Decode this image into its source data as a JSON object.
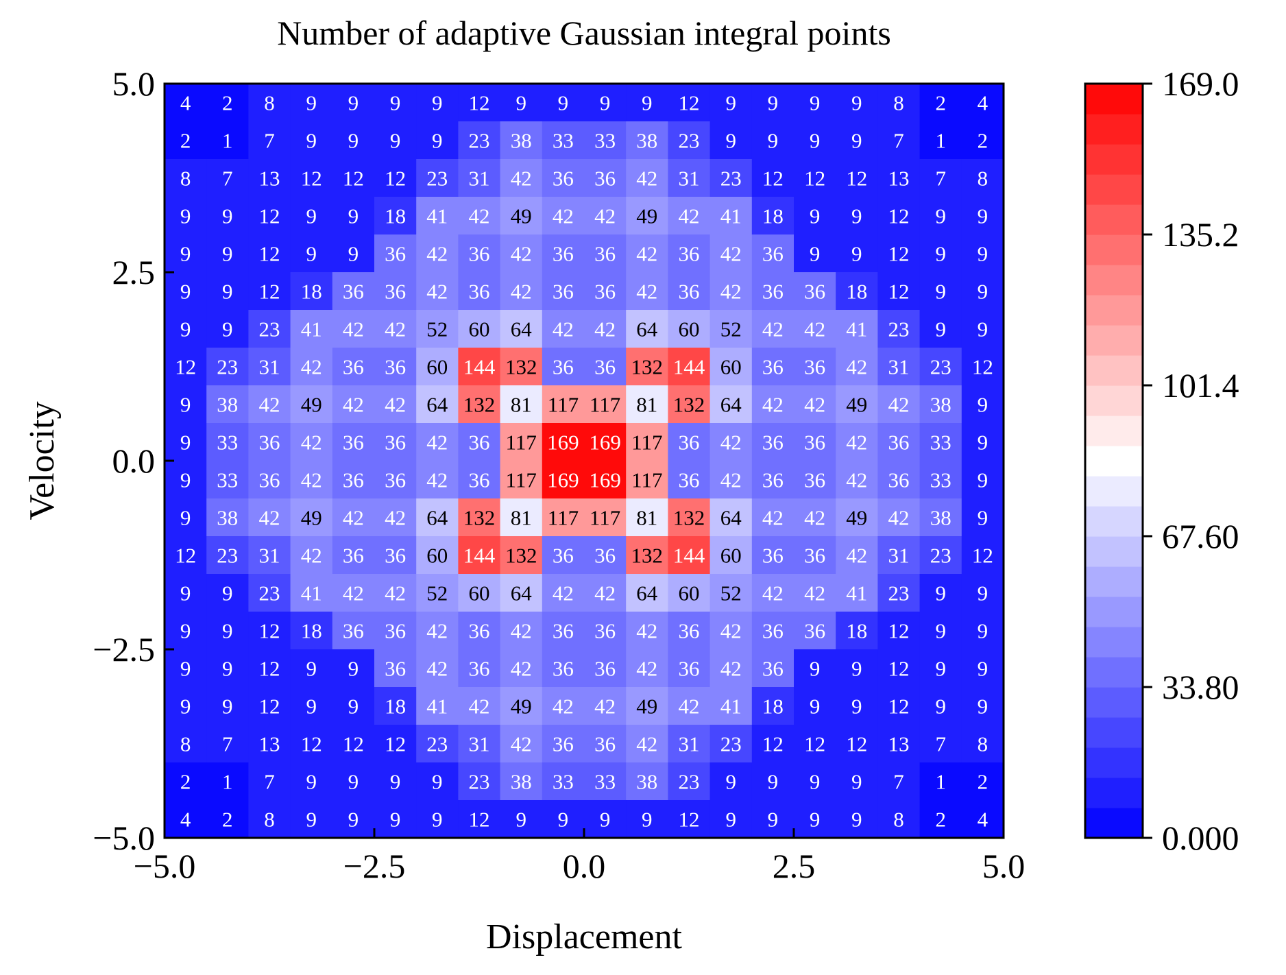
{
  "chart_data": {
    "type": "heatmap",
    "title": "Number of adaptive Gaussian integral points",
    "xlabel": "Displacement",
    "ylabel": "Velocity",
    "xlim": [
      -5.0,
      5.0
    ],
    "ylim": [
      -5.0,
      5.0
    ],
    "xticks": [
      -5.0,
      -2.5,
      0.0,
      2.5,
      5.0
    ],
    "xtick_labels": [
      "−5.0",
      "−2.5",
      "0.0",
      "2.5",
      "5.0"
    ],
    "yticks": [
      -5.0,
      -2.5,
      0.0,
      2.5,
      5.0
    ],
    "ytick_labels": [
      "−5.0",
      "−2.5",
      "0.0",
      "2.5",
      "5.0"
    ],
    "colorbar": {
      "min": 0.0,
      "max": 169.0,
      "ticks": [
        0.0,
        33.8,
        67.6,
        101.4,
        135.2,
        169.0
      ],
      "tick_labels": [
        "0.000",
        "33.80",
        "67.60",
        "101.4",
        "135.2",
        "169.0"
      ],
      "colors": [
        "#0000ff",
        "#ffffff",
        "#ff0000"
      ]
    },
    "rows_top_to_bottom": [
      [
        4,
        2,
        8,
        9,
        9,
        9,
        9,
        12,
        9,
        9,
        9,
        9,
        12,
        9,
        9,
        9,
        9,
        8,
        2,
        4
      ],
      [
        2,
        1,
        7,
        9,
        9,
        9,
        9,
        23,
        38,
        33,
        33,
        38,
        23,
        9,
        9,
        9,
        9,
        7,
        1,
        2
      ],
      [
        8,
        7,
        13,
        12,
        12,
        12,
        23,
        31,
        42,
        36,
        36,
        42,
        31,
        23,
        12,
        12,
        12,
        13,
        7,
        8
      ],
      [
        9,
        9,
        12,
        9,
        9,
        18,
        41,
        42,
        49,
        42,
        42,
        49,
        42,
        41,
        18,
        9,
        9,
        12,
        9,
        9
      ],
      [
        9,
        9,
        12,
        9,
        9,
        36,
        42,
        36,
        42,
        36,
        36,
        42,
        36,
        42,
        36,
        9,
        9,
        12,
        9,
        9
      ],
      [
        9,
        9,
        12,
        18,
        36,
        36,
        42,
        36,
        42,
        36,
        36,
        42,
        36,
        42,
        36,
        36,
        18,
        12,
        9,
        9
      ],
      [
        9,
        9,
        23,
        41,
        42,
        42,
        52,
        60,
        64,
        42,
        42,
        64,
        60,
        52,
        42,
        42,
        41,
        23,
        9,
        9
      ],
      [
        12,
        23,
        31,
        42,
        36,
        36,
        60,
        144,
        132,
        36,
        36,
        132,
        144,
        60,
        36,
        36,
        42,
        31,
        23,
        12
      ],
      [
        9,
        38,
        42,
        49,
        42,
        42,
        64,
        132,
        81,
        117,
        117,
        81,
        132,
        64,
        42,
        42,
        49,
        42,
        38,
        9
      ],
      [
        9,
        33,
        36,
        42,
        36,
        36,
        42,
        36,
        117,
        169,
        169,
        117,
        36,
        42,
        36,
        36,
        42,
        36,
        33,
        9
      ],
      [
        9,
        33,
        36,
        42,
        36,
        36,
        42,
        36,
        117,
        169,
        169,
        117,
        36,
        42,
        36,
        36,
        42,
        36,
        33,
        9
      ],
      [
        9,
        38,
        42,
        49,
        42,
        42,
        64,
        132,
        81,
        117,
        117,
        81,
        132,
        64,
        42,
        42,
        49,
        42,
        38,
        9
      ],
      [
        12,
        23,
        31,
        42,
        36,
        36,
        60,
        144,
        132,
        36,
        36,
        132,
        144,
        60,
        36,
        36,
        42,
        31,
        23,
        12
      ],
      [
        9,
        9,
        23,
        41,
        42,
        42,
        52,
        60,
        64,
        42,
        42,
        64,
        60,
        52,
        42,
        42,
        41,
        23,
        9,
        9
      ],
      [
        9,
        9,
        12,
        18,
        36,
        36,
        42,
        36,
        42,
        36,
        36,
        42,
        36,
        42,
        36,
        36,
        18,
        12,
        9,
        9
      ],
      [
        9,
        9,
        12,
        9,
        9,
        36,
        42,
        36,
        42,
        36,
        36,
        42,
        36,
        42,
        36,
        9,
        9,
        12,
        9,
        9
      ],
      [
        9,
        9,
        12,
        9,
        9,
        18,
        41,
        42,
        49,
        42,
        42,
        49,
        42,
        41,
        18,
        9,
        9,
        12,
        9,
        9
      ],
      [
        8,
        7,
        13,
        12,
        12,
        12,
        23,
        31,
        42,
        36,
        36,
        42,
        31,
        23,
        12,
        12,
        12,
        13,
        7,
        8
      ],
      [
        2,
        1,
        7,
        9,
        9,
        9,
        9,
        23,
        38,
        33,
        33,
        38,
        23,
        9,
        9,
        9,
        9,
        7,
        1,
        2
      ],
      [
        4,
        2,
        8,
        9,
        9,
        9,
        9,
        12,
        9,
        9,
        9,
        9,
        12,
        9,
        9,
        9,
        9,
        8,
        2,
        4
      ]
    ]
  }
}
